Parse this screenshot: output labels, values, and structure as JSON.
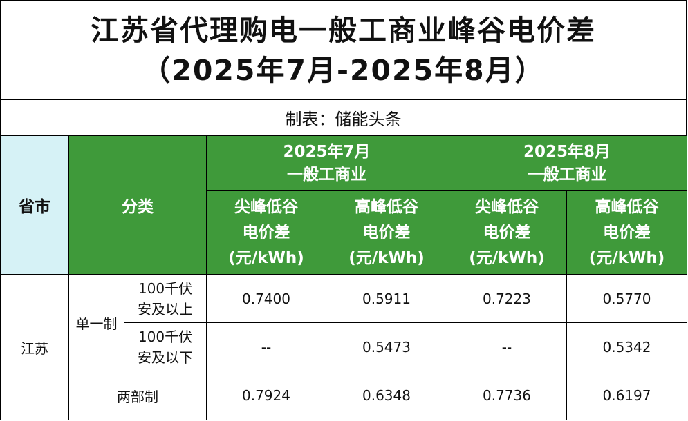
{
  "title": {
    "line1": "江苏省代理购电一般工商业峰谷电价差",
    "line2": "（2025年7月-2025年8月）"
  },
  "credit": "制表：储能头条",
  "header": {
    "province": "省市",
    "category": "分类",
    "months": [
      {
        "month": "2025年7月",
        "type": "一般工商业"
      },
      {
        "month": "2025年8月",
        "type": "一般工商业"
      }
    ],
    "metrics": [
      {
        "line1": "尖峰低谷",
        "line2": "电价差",
        "line3": "(元/kWh)"
      },
      {
        "line1": "高峰低谷",
        "line2": "电价差",
        "line3": "(元/kWh)"
      },
      {
        "line1": "尖峰低谷",
        "line2": "电价差",
        "line3": "(元/kWh)"
      },
      {
        "line1": "高峰低谷",
        "line2": "电价差",
        "line3": "(元/kWh)"
      }
    ]
  },
  "body": {
    "province": "江苏",
    "single_system": "单一制",
    "two_part": "两部制",
    "rows": [
      {
        "sub_line1": "100千伏",
        "sub_line2": "安及以上",
        "values": [
          "0.7400",
          "0.5911",
          "0.7223",
          "0.5770"
        ]
      },
      {
        "sub_line1": "100千伏",
        "sub_line2": "安及以下",
        "values": [
          "--",
          "0.5473",
          "--",
          "0.5342"
        ]
      },
      {
        "values": [
          "0.7924",
          "0.6348",
          "0.7736",
          "0.6197"
        ]
      }
    ]
  },
  "colors": {
    "header_green": "#3f9a3a",
    "province_header_bg": "#d6f2f6",
    "header_text": "#ffffff"
  }
}
